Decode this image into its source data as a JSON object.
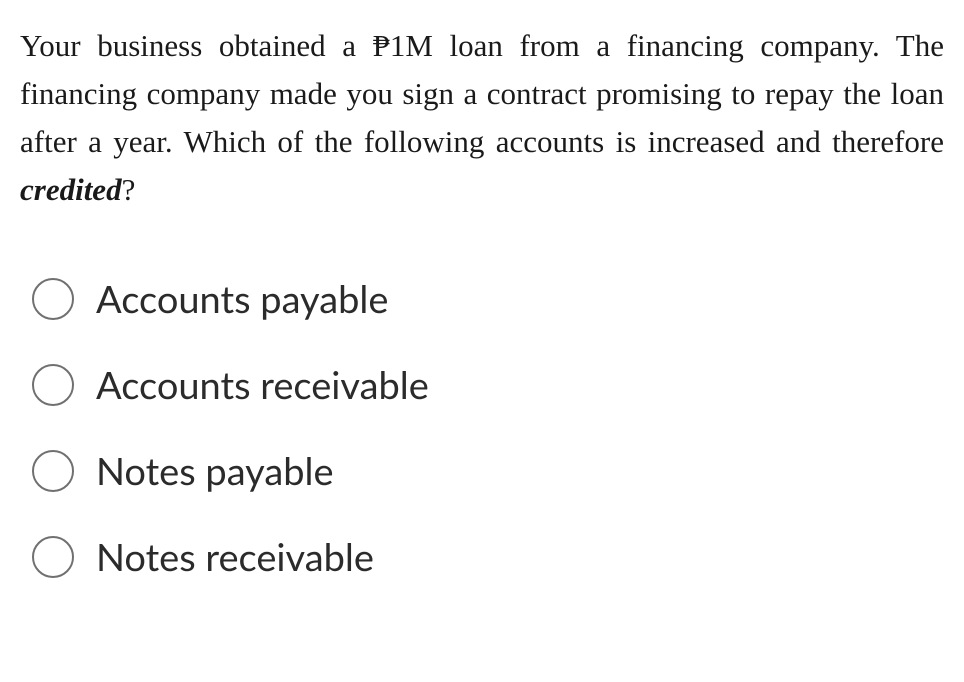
{
  "question": {
    "text_part1": "Your business obtained a ₱1M loan from a financing company. The financing company made you sign a contract promising to repay the loan after a year. Which of the following accounts is increased and therefore ",
    "text_emphasis": "credited",
    "text_part2": "?"
  },
  "options": [
    {
      "label": "Accounts payable"
    },
    {
      "label": "Accounts receivable"
    },
    {
      "label": "Notes payable"
    },
    {
      "label": "Notes receivable"
    }
  ],
  "colors": {
    "text": "#1a1a1a",
    "option_text": "#2b2b2b",
    "radio_border": "#707070",
    "background": "#ffffff"
  },
  "typography": {
    "question_fontsize": 31,
    "option_fontsize": 38,
    "question_font": "serif",
    "option_font": "sans-serif"
  }
}
